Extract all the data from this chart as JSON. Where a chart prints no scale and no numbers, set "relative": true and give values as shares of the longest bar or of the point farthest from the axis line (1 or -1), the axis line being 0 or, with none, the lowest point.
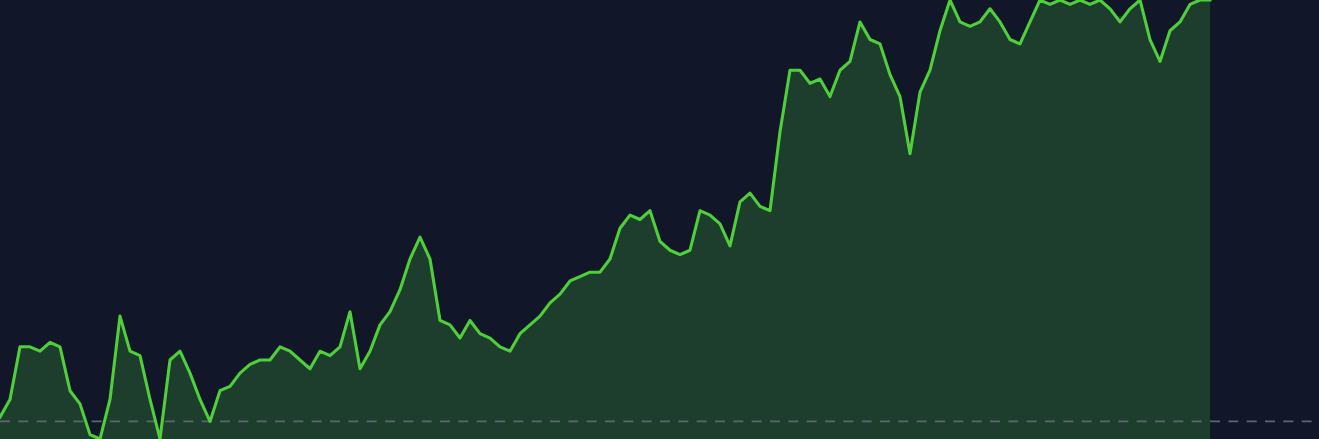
{
  "chart_data": {
    "type": "area",
    "relative": true,
    "categories": [
      null,
      null,
      null,
      null,
      null,
      null,
      null,
      null,
      null,
      null,
      null,
      null,
      null,
      null,
      null,
      null,
      null,
      null,
      null,
      null,
      null,
      null,
      null,
      null,
      null,
      null,
      null,
      null,
      null,
      null,
      null,
      null,
      null,
      null,
      null,
      null,
      null,
      null,
      null,
      null,
      null,
      null,
      null,
      null,
      null,
      null,
      null,
      null,
      null,
      null,
      null,
      null,
      null,
      null,
      null,
      null,
      null,
      null,
      null,
      null,
      null,
      null,
      null,
      null,
      null,
      null,
      null,
      null,
      null,
      null,
      null,
      null,
      null,
      null,
      null,
      null,
      null,
      null,
      null,
      null,
      null,
      null,
      null,
      null,
      null,
      null,
      null,
      null,
      null,
      null,
      null,
      null,
      null,
      null,
      null,
      null,
      null,
      null,
      null,
      null,
      null,
      null,
      null,
      null,
      null,
      null,
      null,
      null,
      null,
      null,
      null,
      null,
      null,
      null,
      null,
      null,
      null,
      null,
      null,
      null,
      null,
      null
    ],
    "series": [
      {
        "color": "#4fcf3a",
        "values": [
          0.05,
          0.09,
          0.21,
          0.21,
          0.2,
          0.22,
          0.21,
          0.11,
          0.08,
          0.01,
          0,
          0.09,
          0.28,
          0.2,
          0.19,
          0.09,
          0,
          0.18,
          0.2,
          0.15,
          0.09,
          0.04,
          0.11,
          0.12,
          0.15,
          0.17,
          0.18,
          0.18,
          0.21,
          0.2,
          0.18,
          0.16,
          0.2,
          0.19,
          0.21,
          0.29,
          0.16,
          0.2,
          0.26,
          0.29,
          0.34,
          0.41,
          0.46,
          0.41,
          0.27,
          0.26,
          0.23,
          0.27,
          0.24,
          0.23,
          0.21,
          0.2,
          0.24,
          0.26,
          0.28,
          0.31,
          0.33,
          0.36,
          0.37,
          0.38,
          0.38,
          0.41,
          0.48,
          0.51,
          0.5,
          0.52,
          0.45,
          0.43,
          0.42,
          0.43,
          0.52,
          0.51,
          0.49,
          0.44,
          0.54,
          0.56,
          0.53,
          0.52,
          0.7,
          0.84,
          0.84,
          0.81,
          0.82,
          0.78,
          0.84,
          0.86,
          0.95,
          0.91,
          0.9,
          0.83,
          0.78,
          0.65,
          0.79,
          0.84,
          0.93,
          1,
          0.95,
          0.94,
          0.95,
          0.98,
          0.95,
          0.91,
          0.9,
          0.95,
          1,
          0.99,
          1,
          0.99,
          1,
          0.99,
          1,
          0.98,
          0.95,
          0.98,
          1,
          0.91,
          0.86,
          0.93,
          0.95,
          0.99,
          1,
          1
        ]
      }
    ],
    "ref_lines": [
      {
        "axis": "y",
        "value": 0.04,
        "color": "#5c6472",
        "line_style": "dashed"
      }
    ]
  }
}
